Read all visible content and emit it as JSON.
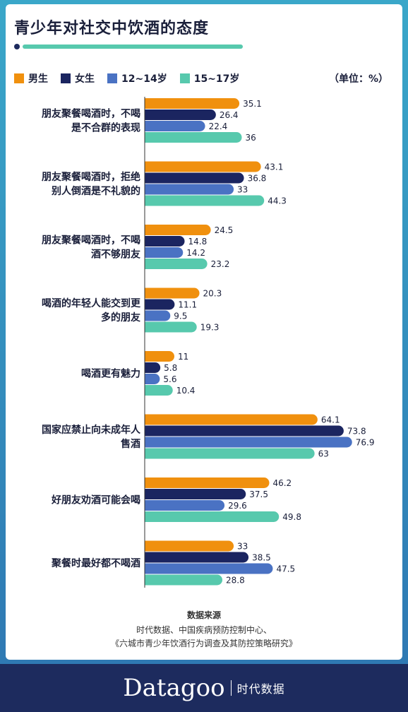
{
  "title": "青少年对社交中饮酒的态度",
  "unit": "（单位：%）",
  "legend": [
    {
      "label": "男生",
      "color": "#f0900e"
    },
    {
      "label": "女生",
      "color": "#1b2560"
    },
    {
      "label": "12~14岁",
      "color": "#4a72c3"
    },
    {
      "label": "15~17岁",
      "color": "#57c9ad"
    }
  ],
  "source": {
    "title": "数据来源",
    "line1": "时代数据、中国疾病预防控制中心、",
    "line2": "《六城市青少年饮酒行为调查及其防控策略研究》"
  },
  "footer": {
    "brand": "Datagoo",
    "brand_cn": "时代数据"
  },
  "chart_data": {
    "type": "bar",
    "orientation": "horizontal",
    "categories": [
      [
        "朋友聚餐喝酒时，不喝",
        "是不合群的表现"
      ],
      [
        "朋友聚餐喝酒时，拒绝",
        "别人倒酒是不礼貌的"
      ],
      [
        "朋友聚餐喝酒时，不喝",
        "酒不够朋友"
      ],
      [
        "喝酒的年轻人能交到更",
        "多的朋友"
      ],
      [
        "喝酒更有魅力"
      ],
      [
        "国家应禁止向未成年人",
        "售酒"
      ],
      [
        "好朋友劝酒可能会喝"
      ],
      [
        "聚餐时最好都不喝酒"
      ]
    ],
    "series": [
      {
        "name": "男生",
        "color": "#f0900e",
        "values": [
          35.1,
          43.1,
          24.5,
          20.3,
          11,
          64.1,
          46.2,
          33
        ]
      },
      {
        "name": "女生",
        "color": "#1b2560",
        "values": [
          26.4,
          36.8,
          14.8,
          11.1,
          5.8,
          73.8,
          37.5,
          38.5
        ]
      },
      {
        "name": "12~14岁",
        "color": "#4a72c3",
        "values": [
          22.4,
          33,
          14.2,
          9.5,
          5.6,
          76.9,
          29.6,
          47.5
        ]
      },
      {
        "name": "15~17岁",
        "color": "#57c9ad",
        "values": [
          36,
          44.3,
          23.2,
          19.3,
          10.4,
          63,
          49.8,
          28.8
        ]
      }
    ],
    "xlim": [
      0,
      100
    ],
    "legend_position": "top"
  }
}
